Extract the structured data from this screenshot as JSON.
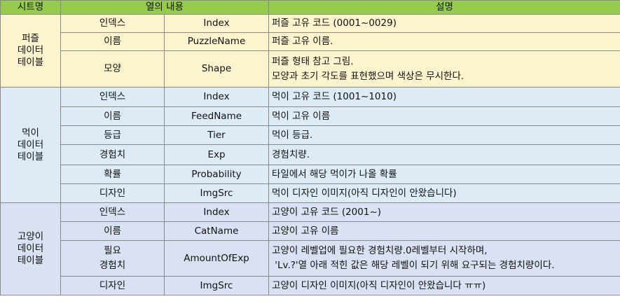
{
  "header": {
    "sheet_name": "시트명",
    "column_content": "열의 내용",
    "description": "설명"
  },
  "groups": [
    {
      "sheet_name_lines": [
        "퍼즐",
        "데이터",
        "테이블"
      ],
      "rows": [
        {
          "label": "인덱스",
          "column": "Index",
          "desc": [
            "퍼즐 고유 코드 (0001~0029)"
          ]
        },
        {
          "label": "이름",
          "column": "PuzzleName",
          "desc": [
            "퍼즐 고유 이름."
          ]
        },
        {
          "label": "모양",
          "column": "Shape",
          "desc": [
            "퍼즐 형태 참고 그림.",
            "모양과 초기 각도를 표현했으며 색상은 무시한다."
          ]
        }
      ]
    },
    {
      "sheet_name_lines": [
        "먹이",
        "데이터",
        "테이블"
      ],
      "rows": [
        {
          "label": "인덱스",
          "column": "Index",
          "desc": [
            "먹이 고유 코드 (1001~1010)"
          ]
        },
        {
          "label": "이름",
          "column": "FeedName",
          "desc": [
            "먹이 고유 이름"
          ]
        },
        {
          "label": "등급",
          "column": "Tier",
          "desc": [
            "먹이 등급."
          ]
        },
        {
          "label": "경험치",
          "column": "Exp",
          "desc": [
            "경험치량."
          ]
        },
        {
          "label": "확률",
          "column": "Probability",
          "desc": [
            "타일에서 해당 먹이가 나올 확률"
          ]
        },
        {
          "label": "디자인",
          "column": "ImgSrc",
          "desc": [
            "먹이 디자인 이미지(아직 디자인이 안왔습니다)"
          ]
        }
      ]
    },
    {
      "sheet_name_lines": [
        "고양이",
        "데이터",
        "테이블"
      ],
      "rows": [
        {
          "label": "인덱스",
          "column": "Index",
          "desc": [
            "고양이 고유 코드 (2001~)"
          ]
        },
        {
          "label": "이름",
          "column": "CatName",
          "desc": [
            "고양이 고유 이름"
          ]
        },
        {
          "label": "필요\n경험치",
          "column": "AmountOfExp",
          "desc": [
            "고양이 레벨업에 필요한 경험치량.0레벨부터 시작하며,",
            " 'Lv.?'열 아래 적힌 값은 해당 레벨이 되기 위해 요구되는 경험치량이다."
          ]
        },
        {
          "label": "디자인",
          "column": "ImgSrc",
          "desc": [
            "고양이 디자인 이미지(아직 디자인이 안왔습니다 ㅠㅠ)"
          ]
        }
      ]
    }
  ]
}
